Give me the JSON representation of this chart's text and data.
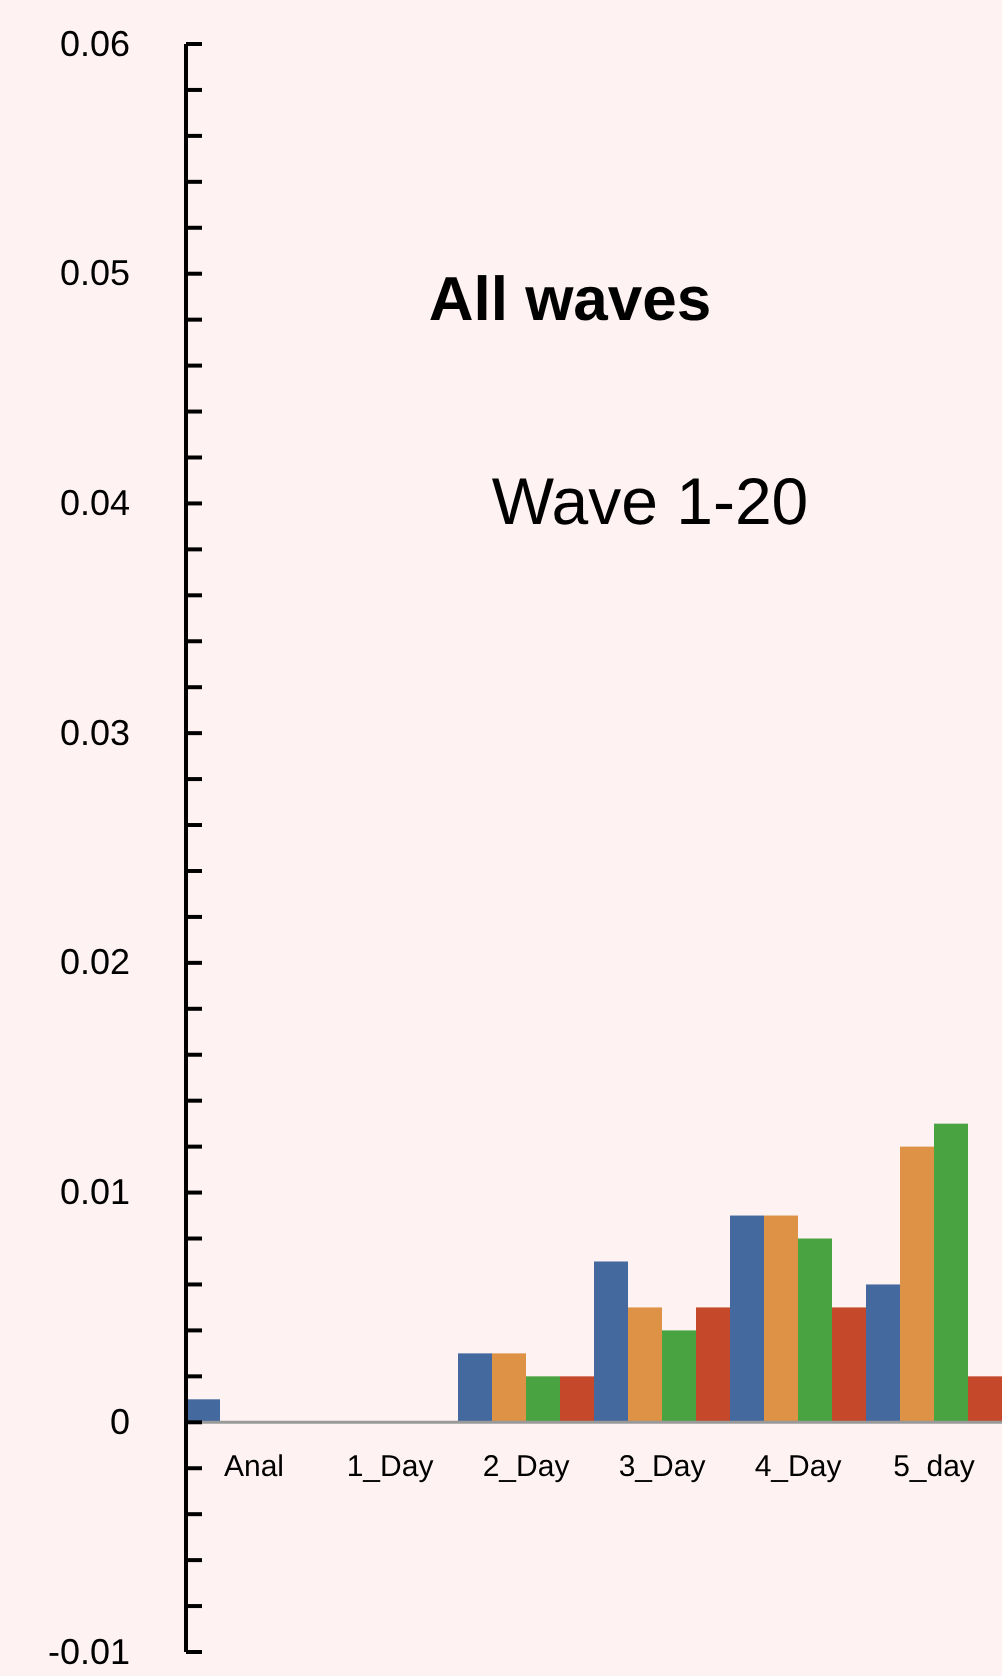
{
  "chart_data": {
    "type": "bar",
    "title": "All waves",
    "subtitle": "Wave 1-20",
    "categories": [
      "Anal",
      "1_Day",
      "2_Day",
      "3_Day",
      "4_Day",
      "5_day"
    ],
    "series": [
      {
        "color": "#44699e",
        "values": [
          0.001,
          0,
          0.003,
          0.007,
          0.009,
          0.006
        ]
      },
      {
        "color": "#dd9245",
        "values": [
          0,
          0,
          0.003,
          0.005,
          0.009,
          0.012
        ]
      },
      {
        "color": "#4aa341",
        "values": [
          0,
          0,
          0.002,
          0.004,
          0.008,
          0.013
        ]
      },
      {
        "color": "#c5482b",
        "values": [
          0,
          0,
          0.002,
          0.005,
          0.005,
          0.002
        ]
      }
    ],
    "ylim": [
      -0.01,
      0.06
    ],
    "yticks": [
      -0.01,
      {
        "value": -0.008,
        "label": null
      },
      {
        "value": -0.006,
        "label": null
      },
      {
        "value": -0.004,
        "label": null
      },
      {
        "value": -0.002,
        "label": null
      },
      0,
      {
        "value": 0.002,
        "label": null
      },
      {
        "value": 0.004,
        "label": null
      },
      {
        "value": 0.006,
        "label": null
      },
      {
        "value": 0.008,
        "label": null
      },
      0.01,
      {
        "value": 0.012,
        "label": null
      },
      {
        "value": 0.014,
        "label": null
      },
      {
        "value": 0.016,
        "label": null
      },
      {
        "value": 0.018,
        "label": null
      },
      0.02,
      {
        "value": 0.022,
        "label": null
      },
      {
        "value": 0.024,
        "label": null
      },
      {
        "value": 0.026,
        "label": null
      },
      {
        "value": 0.028,
        "label": null
      },
      0.03,
      {
        "value": 0.032,
        "label": null
      },
      {
        "value": 0.034,
        "label": null
      },
      {
        "value": 0.036,
        "label": null
      },
      {
        "value": 0.038,
        "label": null
      },
      0.04,
      {
        "value": 0.042,
        "label": null
      },
      {
        "value": 0.044,
        "label": null
      },
      {
        "value": 0.046,
        "label": null
      },
      {
        "value": 0.048,
        "label": null
      },
      0.05,
      {
        "value": 0.052,
        "label": null
      },
      {
        "value": 0.054,
        "label": null
      },
      {
        "value": 0.056,
        "label": null
      },
      {
        "value": 0.058,
        "label": null
      },
      0.06
    ],
    "grid": false
  }
}
